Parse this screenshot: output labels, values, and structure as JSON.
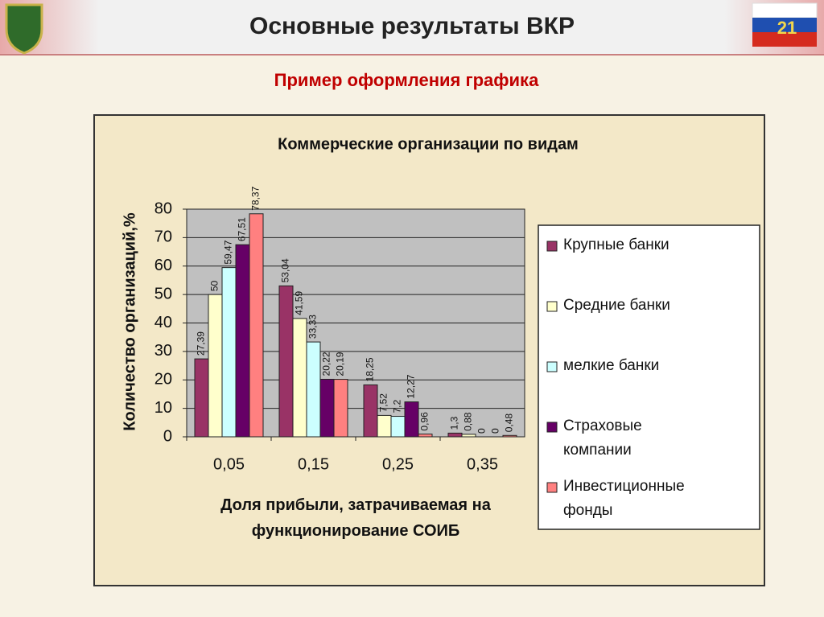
{
  "slide": {
    "title": "Основные результаты ВКР",
    "number": "21",
    "subtitle": "Пример оформления графика"
  },
  "chart_data": {
    "type": "bar",
    "title": "Коммерческие организации по видам",
    "x_label": "Доля прибыли, затрачиваемая на функционирование СОИБ",
    "y_label": "Количество организаций,%",
    "categories": [
      "0,05",
      "0,15",
      "0,25",
      "0,35"
    ],
    "series": [
      {
        "name": "Крупные банки",
        "color": "#993366",
        "values": [
          27.39,
          53.04,
          18.25,
          1.3
        ],
        "value_labels": [
          "27,39",
          "53,04",
          "18,25",
          "1,3"
        ]
      },
      {
        "name": "Средние банки",
        "color": "#ffffcc",
        "values": [
          50,
          41.59,
          7.52,
          0.88
        ],
        "value_labels": [
          "50",
          "41,59",
          "7,52",
          "0,88"
        ]
      },
      {
        "name": "мелкие банки",
        "color": "#ccffff",
        "values": [
          59.47,
          33.33,
          7.2,
          0
        ],
        "value_labels": [
          "59,47",
          "33,33",
          "7,2",
          "0"
        ]
      },
      {
        "name": "Страховые компании",
        "color": "#660066",
        "values": [
          67.51,
          20.22,
          12.27,
          0
        ],
        "value_labels": [
          "67,51",
          "20,22",
          "12,27",
          "0"
        ]
      },
      {
        "name": "Инвестиционные фонды",
        "color": "#ff8080",
        "values": [
          78.37,
          20.19,
          0.96,
          0.48
        ],
        "value_labels": [
          "78,37",
          "20,19",
          "0,96",
          "0,48"
        ]
      }
    ],
    "ylim": [
      0,
      80
    ],
    "yticks": [
      0,
      10,
      20,
      30,
      40,
      50,
      60,
      70,
      80
    ],
    "grid": true,
    "legend": "right"
  }
}
